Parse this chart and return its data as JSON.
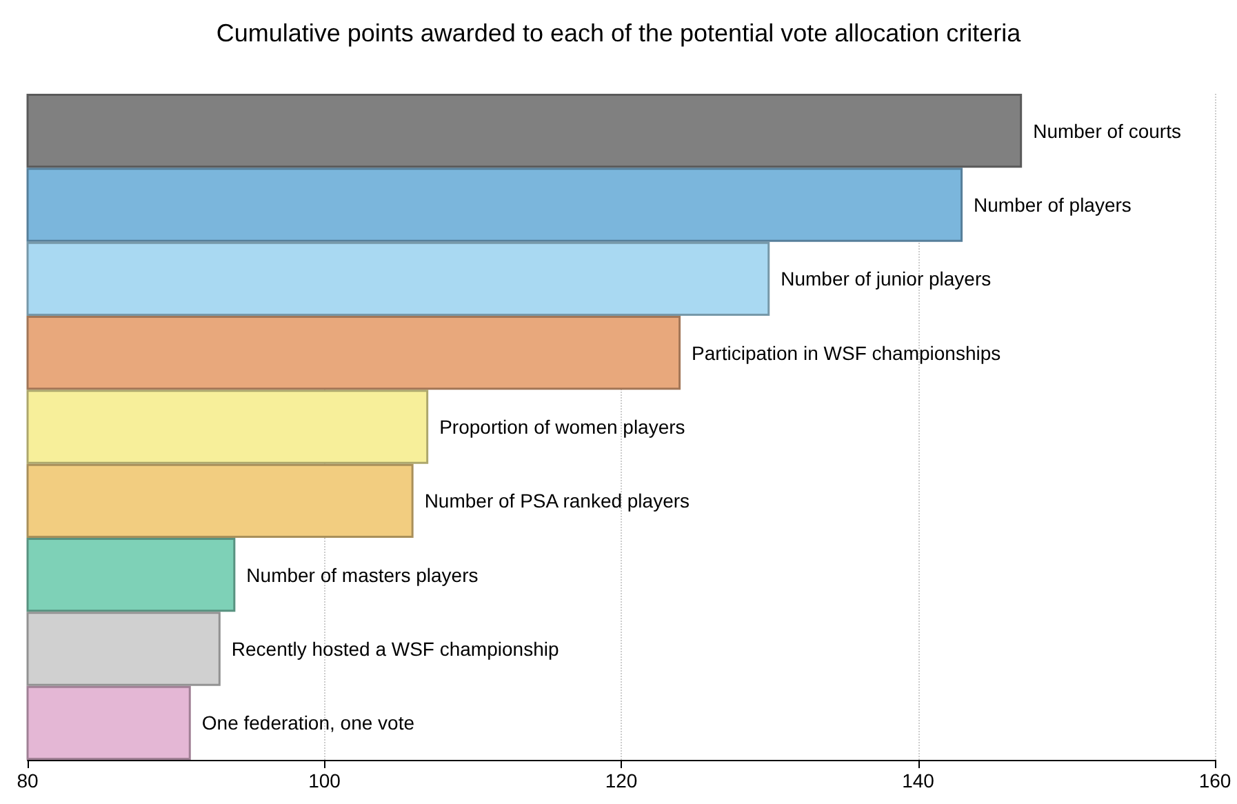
{
  "chart_data": {
    "type": "bar",
    "orientation": "horizontal",
    "title": "Cumulative points awarded to each of the potential vote allocation criteria",
    "categories": [
      "Number of courts",
      "Number of players",
      "Number of junior players",
      "Participation in WSF championships",
      "Proportion of women players",
      "Number of PSA ranked players",
      "Number of masters players",
      "Recently hosted a WSF championship",
      "One federation, one vote"
    ],
    "values": [
      147,
      143,
      130,
      124,
      107,
      106,
      94,
      93,
      91
    ],
    "colors": [
      "#808080",
      "#7bb6dc",
      "#a9d9f2",
      "#e8a87c",
      "#f7ef9a",
      "#f2cd80",
      "#7ed1b7",
      "#d0d0d0",
      "#e4b7d5"
    ],
    "xlim": [
      80,
      160
    ],
    "xticks": [
      80,
      100,
      120,
      140,
      160
    ],
    "grid": "x",
    "tick_labels": "x"
  }
}
